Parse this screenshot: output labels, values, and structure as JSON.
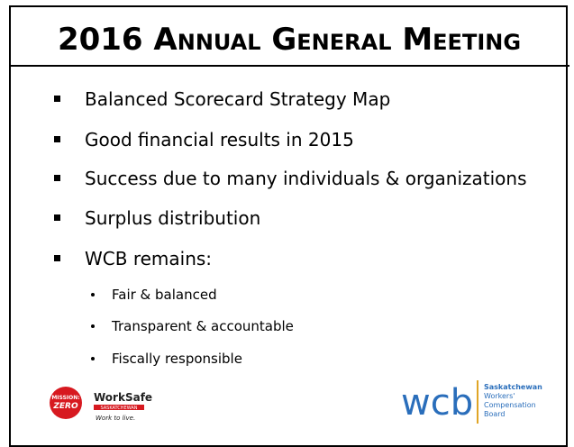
{
  "title": "2016 Annual General Meeting",
  "bullets": [
    "Balanced Scorecard Strategy Map",
    "Good financial results in 2015",
    "Success due to many individuals & organizations",
    "Surplus distribution",
    "WCB remains:"
  ],
  "sub_bullets": [
    "Fair & balanced",
    "Transparent & accountable",
    "Fiscally responsible"
  ],
  "logos": {
    "mission_zero": {
      "top": "MISSION:",
      "bottom": "ZERO"
    },
    "worksafe": {
      "name": "WorkSafe",
      "region": "SASKATCHEWAN",
      "tagline": "Work to live."
    },
    "wcb": {
      "name": "wcb",
      "lines": [
        "Saskatchewan",
        "Workers'",
        "Compensation",
        "Board"
      ]
    }
  }
}
